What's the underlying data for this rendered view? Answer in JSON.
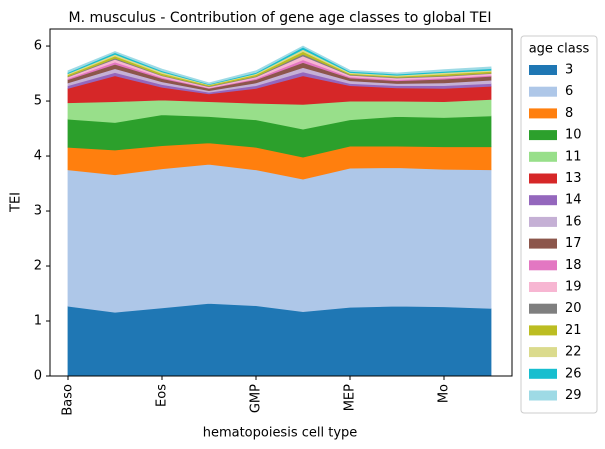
{
  "chart_data": {
    "type": "stacked_area",
    "title": "M. musculus - Contribution of gene age classes to global TEI",
    "x_label": "hematopoiesis cell type",
    "y_label": "TEI",
    "categories": [
      "Baso",
      null,
      "Eos",
      null,
      "GMP",
      null,
      "MEP",
      null,
      "Mo",
      null
    ],
    "ylim": [
      0,
      6.31
    ],
    "yticks": [
      0,
      1,
      2,
      3,
      4,
      5,
      6
    ],
    "legend_title": "age class",
    "legend_position": "outside right",
    "series": [
      {
        "name": "3",
        "color": "#1f77b4",
        "values": [
          1.27,
          1.16,
          1.24,
          1.32,
          1.28,
          1.17,
          1.25,
          1.27,
          1.26,
          1.23
        ]
      },
      {
        "name": "6",
        "color": "#aec7e8",
        "values": [
          2.48,
          2.5,
          2.53,
          2.53,
          2.47,
          2.41,
          2.53,
          2.52,
          2.5,
          2.52
        ]
      },
      {
        "name": "8",
        "color": "#ff7f0e",
        "values": [
          0.41,
          0.45,
          0.42,
          0.39,
          0.41,
          0.4,
          0.4,
          0.39,
          0.41,
          0.42
        ]
      },
      {
        "name": "10",
        "color": "#2ca02c",
        "values": [
          0.51,
          0.5,
          0.56,
          0.48,
          0.5,
          0.51,
          0.48,
          0.54,
          0.53,
          0.56
        ]
      },
      {
        "name": "11",
        "color": "#98df8a",
        "values": [
          0.3,
          0.38,
          0.27,
          0.27,
          0.3,
          0.45,
          0.34,
          0.28,
          0.29,
          0.3
        ]
      },
      {
        "name": "13",
        "color": "#d62728",
        "values": [
          0.26,
          0.47,
          0.23,
          0.14,
          0.27,
          0.52,
          0.28,
          0.24,
          0.24,
          0.24
        ]
      },
      {
        "name": "14",
        "color": "#9467bd",
        "values": [
          0.05,
          0.06,
          0.05,
          0.03,
          0.05,
          0.07,
          0.04,
          0.04,
          0.05,
          0.05
        ]
      },
      {
        "name": "16",
        "color": "#c5b0d5",
        "values": [
          0.05,
          0.07,
          0.05,
          0.03,
          0.05,
          0.08,
          0.05,
          0.04,
          0.05,
          0.06
        ]
      },
      {
        "name": "17",
        "color": "#8c564b",
        "values": [
          0.06,
          0.08,
          0.06,
          0.04,
          0.06,
          0.09,
          0.05,
          0.05,
          0.07,
          0.07
        ]
      },
      {
        "name": "18",
        "color": "#e377c2",
        "values": [
          0.02,
          0.04,
          0.02,
          0.01,
          0.02,
          0.05,
          0.02,
          0.02,
          0.02,
          0.02
        ]
      },
      {
        "name": "19",
        "color": "#f7b6d2",
        "values": [
          0.03,
          0.05,
          0.03,
          0.02,
          0.03,
          0.07,
          0.03,
          0.03,
          0.03,
          0.03
        ]
      },
      {
        "name": "20",
        "color": "#7f7f7f",
        "values": [
          0.01,
          0.02,
          0.01,
          0.01,
          0.01,
          0.03,
          0.01,
          0.01,
          0.01,
          0.01
        ]
      },
      {
        "name": "21",
        "color": "#bcbd22",
        "values": [
          0.03,
          0.04,
          0.03,
          0.02,
          0.03,
          0.05,
          0.02,
          0.02,
          0.03,
          0.03
        ]
      },
      {
        "name": "22",
        "color": "#dbdb8d",
        "values": [
          0.02,
          0.03,
          0.03,
          0.01,
          0.02,
          0.04,
          0.02,
          0.02,
          0.03,
          0.02
        ]
      },
      {
        "name": "26",
        "color": "#17becf",
        "values": [
          0.02,
          0.03,
          0.02,
          0.01,
          0.02,
          0.04,
          0.02,
          0.02,
          0.02,
          0.03
        ]
      },
      {
        "name": "29",
        "color": "#9edae5",
        "values": [
          0.03,
          0.02,
          0.03,
          0.02,
          0.03,
          0.02,
          0.02,
          0.02,
          0.03,
          0.03
        ]
      }
    ]
  }
}
